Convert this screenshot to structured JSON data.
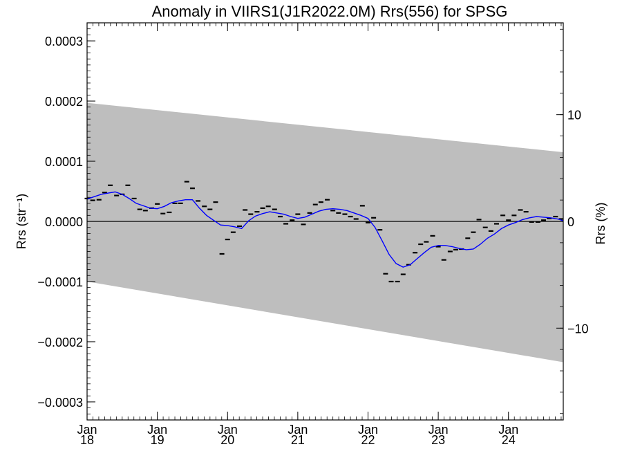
{
  "chart_data": {
    "type": "line",
    "title": "Anomaly in VIIRS1(J1R2022.0M) Rrs(556) for SPSG",
    "ylabel_left": "Rrs (str⁻¹)",
    "ylabel_right": "Rrs (%)",
    "xlabel": "",
    "x_range": [
      2018.0,
      2024.78
    ],
    "y_range": [
      -0.00033,
      0.00033
    ],
    "y_right_range": [
      -18.6,
      18.6
    ],
    "y_ticks": [
      {
        "v": 0.0003,
        "label": "0.0003"
      },
      {
        "v": 0.0002,
        "label": "0.0002"
      },
      {
        "v": 0.0001,
        "label": "0.0001"
      },
      {
        "v": 0.0,
        "label": "0.0000"
      },
      {
        "v": -0.0001,
        "label": "−0.0001"
      },
      {
        "v": -0.0002,
        "label": "−0.0002"
      },
      {
        "v": -0.0003,
        "label": "−0.0003"
      }
    ],
    "y_right_ticks": [
      {
        "v": 10,
        "label": "10"
      },
      {
        "v": 0,
        "label": "0"
      },
      {
        "v": -10,
        "label": "−10"
      }
    ],
    "x_ticks": [
      {
        "v": 2018,
        "month": "Jan",
        "year": "18"
      },
      {
        "v": 2019,
        "month": "Jan",
        "year": "19"
      },
      {
        "v": 2020,
        "month": "Jan",
        "year": "20"
      },
      {
        "v": 2021,
        "month": "Jan",
        "year": "21"
      },
      {
        "v": 2022,
        "month": "Jan",
        "year": "22"
      },
      {
        "v": 2023,
        "month": "Jan",
        "year": "23"
      },
      {
        "v": 2024,
        "month": "Jan",
        "year": "24"
      }
    ],
    "band": {
      "upper": [
        [
          2018.0,
          0.000197
        ],
        [
          2024.78,
          0.000115
        ]
      ],
      "lower": [
        [
          2018.0,
          -0.0001
        ],
        [
          2024.78,
          -0.000234
        ]
      ],
      "color": "#bebebe"
    },
    "series": [
      {
        "kind": "points",
        "color": "#000000",
        "x": [
          2018.0,
          2018.08,
          2018.17,
          2018.25,
          2018.33,
          2018.42,
          2018.5,
          2018.58,
          2018.67,
          2018.75,
          2018.83,
          2018.92,
          2019.0,
          2019.08,
          2019.17,
          2019.25,
          2019.33,
          2019.42,
          2019.5,
          2019.58,
          2019.67,
          2019.75,
          2019.83,
          2019.92,
          2020.0,
          2020.08,
          2020.17,
          2020.25,
          2020.33,
          2020.42,
          2020.5,
          2020.58,
          2020.67,
          2020.75,
          2020.83,
          2020.92,
          2021.0,
          2021.08,
          2021.17,
          2021.25,
          2021.33,
          2021.42,
          2021.5,
          2021.58,
          2021.67,
          2021.75,
          2021.83,
          2021.92,
          2022.0,
          2022.08,
          2022.17,
          2022.25,
          2022.33,
          2022.42,
          2022.5,
          2022.58,
          2022.67,
          2022.75,
          2022.83,
          2022.92,
          2023.0,
          2023.08,
          2023.17,
          2023.25,
          2023.33,
          2023.42,
          2023.5,
          2023.58,
          2023.67,
          2023.75,
          2023.83,
          2023.92,
          2024.0,
          2024.08,
          2024.17,
          2024.25,
          2024.33,
          2024.42,
          2024.5,
          2024.58,
          2024.67,
          2024.75
        ],
        "y": [
          3.8e-05,
          3.5e-05,
          3.6e-05,
          4.8e-05,
          6e-05,
          4.3e-05,
          4.5e-05,
          6e-05,
          3.8e-05,
          2e-05,
          1.8e-05,
          2.2e-05,
          2.9e-05,
          1.3e-05,
          1.5e-05,
          3e-05,
          3e-05,
          6.6e-05,
          5.5e-05,
          3.4e-05,
          2.5e-05,
          2e-05,
          3.2e-05,
          -5.4e-05,
          -3e-05,
          -1.8e-05,
          -8e-06,
          1.9e-05,
          1.2e-05,
          1.6e-05,
          2.2e-05,
          2.5e-05,
          2e-05,
          8e-06,
          -4e-06,
          2e-06,
          1.2e-05,
          -5e-06,
          1.4e-05,
          2.8e-05,
          3.2e-05,
          3.6e-05,
          1.8e-05,
          1.4e-05,
          1.2e-05,
          8e-06,
          4e-06,
          2.6e-05,
          -2e-06,
          6e-06,
          -1.4e-05,
          -8.7e-05,
          -0.0001,
          -0.0001,
          -8.8e-05,
          -7.2e-05,
          -5.2e-05,
          -3.8e-05,
          -3.4e-05,
          -2.4e-05,
          -4.2e-05,
          -6.4e-05,
          -5e-05,
          -4.7e-05,
          -4.6e-05,
          -2.8e-05,
          -1.8e-05,
          3e-06,
          -1e-05,
          -1.6e-05,
          -4e-06,
          1e-05,
          2e-06,
          1e-05,
          1.9e-05,
          1.6e-05,
          -1e-06,
          -1e-06,
          2e-06,
          5e-06,
          8e-06,
          4e-06
        ]
      },
      {
        "kind": "line",
        "color": "#0000ff",
        "x": [
          2018.0,
          2018.1,
          2018.2,
          2018.3,
          2018.4,
          2018.5,
          2018.6,
          2018.7,
          2018.8,
          2018.9,
          2019.0,
          2019.1,
          2019.2,
          2019.3,
          2019.4,
          2019.5,
          2019.6,
          2019.7,
          2019.8,
          2019.9,
          2020.0,
          2020.1,
          2020.2,
          2020.3,
          2020.4,
          2020.5,
          2020.6,
          2020.7,
          2020.8,
          2020.9,
          2021.0,
          2021.1,
          2021.2,
          2021.3,
          2021.4,
          2021.5,
          2021.6,
          2021.7,
          2021.8,
          2021.9,
          2022.0,
          2022.1,
          2022.2,
          2022.3,
          2022.4,
          2022.5,
          2022.6,
          2022.7,
          2022.8,
          2022.9,
          2023.0,
          2023.1,
          2023.2,
          2023.3,
          2023.4,
          2023.5,
          2023.6,
          2023.7,
          2023.8,
          2023.9,
          2024.0,
          2024.1,
          2024.2,
          2024.3,
          2024.4,
          2024.5,
          2024.6,
          2024.7,
          2024.78
        ],
        "y": [
          3.7e-05,
          4.1e-05,
          4.5e-05,
          4.7e-05,
          4.9e-05,
          4.5e-05,
          3.8e-05,
          3e-05,
          2.6e-05,
          2.2e-05,
          2.1e-05,
          2.5e-05,
          3.1e-05,
          3.4e-05,
          3.6e-05,
          3.6e-05,
          2.2e-05,
          1e-05,
          2e-06,
          -6e-06,
          -7e-06,
          -9e-06,
          -1.2e-05,
          1e-06,
          9e-06,
          1.3e-05,
          1.6e-05,
          1.4e-05,
          1.2e-05,
          8e-06,
          5e-06,
          7e-06,
          1.2e-05,
          1.7e-05,
          2e-05,
          2.1e-05,
          2e-05,
          1.8e-05,
          1.4e-05,
          1e-05,
          5e-06,
          -1e-05,
          -3.2e-05,
          -5.5e-05,
          -7e-05,
          -7.6e-05,
          -7.2e-05,
          -6.2e-05,
          -5.2e-05,
          -4.3e-05,
          -4e-05,
          -4e-05,
          -4.2e-05,
          -4.5e-05,
          -4.7e-05,
          -4.6e-05,
          -3.8e-05,
          -2.8e-05,
          -2.1e-05,
          -1.2e-05,
          -6e-06,
          -2e-06,
          3e-06,
          6e-06,
          8e-06,
          7e-06,
          6e-06,
          4e-06,
          1e-06
        ]
      }
    ],
    "zero_line": true,
    "grid": false,
    "legend": "none"
  }
}
